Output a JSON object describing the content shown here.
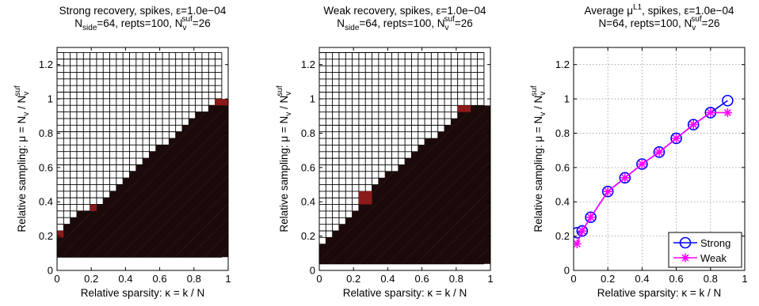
{
  "chart_data": [
    {
      "type": "heatmap",
      "title_lines": [
        [
          "Strong recovery,  spikes,  ",
          {
            "t": "ε"
          },
          "=1.0e−04"
        ],
        [
          "N",
          {
            "sub": "side"
          },
          "=64,  repts=100,  N",
          {
            "sub": "v"
          },
          {
            "sup": "suf"
          },
          "=26"
        ]
      ],
      "xlabel": "Relative sparsity: κ = k / N",
      "ylabel": [
        "Relative sampling: μ = N",
        {
          "sub": "v"
        },
        " / N",
        {
          "sub": "v"
        },
        {
          "sup": "suf"
        }
      ],
      "xlim": [
        0,
        1
      ],
      "ylim": [
        0,
        1.3
      ],
      "x_ticks": [
        0,
        0.2,
        0.4,
        0.6,
        0.8,
        1
      ],
      "x_tick_labels": [
        "0",
        "0.2",
        "0.4",
        "0.6",
        "0.8",
        "1"
      ],
      "y_ticks": [
        0,
        0.2,
        0.4,
        0.6,
        0.8,
        1,
        1.2
      ],
      "y_tick_labels": [
        "0",
        "0.2",
        "0.4",
        "0.6",
        "0.8",
        "1",
        "1.2"
      ],
      "grid_x": {
        "start": 0.0,
        "step": 0.0385,
        "count": 25
      },
      "grid_y": {
        "start": 0.077,
        "step": 0.0385,
        "count": 31
      },
      "boundary": [
        {
          "x0": 0.0,
          "x1": 0.0385,
          "y": 0.231
        },
        {
          "x0": 0.0385,
          "x1": 0.0769,
          "y": 0.269
        },
        {
          "x0": 0.0769,
          "x1": 0.1154,
          "y": 0.308
        },
        {
          "x0": 0.1154,
          "x1": 0.1923,
          "y": 0.346
        },
        {
          "x0": 0.1923,
          "x1": 0.2692,
          "y": 0.385
        },
        {
          "x0": 0.2692,
          "x1": 0.3077,
          "y": 0.423
        },
        {
          "x0": 0.3077,
          "x1": 0.3462,
          "y": 0.462
        },
        {
          "x0": 0.3462,
          "x1": 0.3846,
          "y": 0.5
        },
        {
          "x0": 0.3846,
          "x1": 0.4231,
          "y": 0.538
        },
        {
          "x0": 0.4231,
          "x1": 0.4615,
          "y": 0.577
        },
        {
          "x0": 0.4615,
          "x1": 0.5,
          "y": 0.615
        },
        {
          "x0": 0.5,
          "x1": 0.5385,
          "y": 0.654
        },
        {
          "x0": 0.5385,
          "x1": 0.5769,
          "y": 0.692
        },
        {
          "x0": 0.5769,
          "x1": 0.6538,
          "y": 0.731
        },
        {
          "x0": 0.6538,
          "x1": 0.6923,
          "y": 0.769
        },
        {
          "x0": 0.6923,
          "x1": 0.7308,
          "y": 0.808
        },
        {
          "x0": 0.7308,
          "x1": 0.7692,
          "y": 0.846
        },
        {
          "x0": 0.7692,
          "x1": 0.8077,
          "y": 0.885
        },
        {
          "x0": 0.8077,
          "x1": 0.8846,
          "y": 0.923
        },
        {
          "x0": 0.8846,
          "x1": 0.9231,
          "y": 0.962
        },
        {
          "x0": 0.9231,
          "x1": 1.0,
          "y": 1.0
        }
      ],
      "red_cells": [
        {
          "x0": 0.0,
          "x1": 0.0385,
          "y0": 0.192,
          "y1": 0.231
        },
        {
          "x0": 0.1923,
          "x1": 0.2308,
          "y0": 0.346,
          "y1": 0.385
        },
        {
          "x0": 0.9231,
          "x1": 1.0,
          "y0": 0.962,
          "y1": 1.0
        }
      ],
      "colors": {
        "failure": "#1c0a0a",
        "success": "#ffffff",
        "partial": "#8b1a1a",
        "gridline": "#000000"
      }
    },
    {
      "type": "heatmap",
      "title_lines": [
        [
          "Weak recovery,  spikes,  ",
          {
            "t": "ε"
          },
          "=1.0e−04"
        ],
        [
          "N",
          {
            "sub": "side"
          },
          "=64,  repts=100,  N",
          {
            "sub": "v"
          },
          {
            "sup": "suf"
          },
          "=26"
        ]
      ],
      "xlabel": "Relative sparsity: κ = k / N",
      "ylabel": [
        "Relative sampling: μ = N",
        {
          "sub": "v"
        },
        " / N",
        {
          "sub": "v"
        },
        {
          "sup": "suf"
        }
      ],
      "xlim": [
        0,
        1
      ],
      "ylim": [
        0,
        1.3
      ],
      "x_ticks": [
        0,
        0.2,
        0.4,
        0.6,
        0.8,
        1
      ],
      "x_tick_labels": [
        "0",
        "0.2",
        "0.4",
        "0.6",
        "0.8",
        "1"
      ],
      "y_ticks": [
        0,
        0.2,
        0.4,
        0.6,
        0.8,
        1,
        1.2
      ],
      "y_tick_labels": [
        "0",
        "0.2",
        "0.4",
        "0.6",
        "0.8",
        "1",
        "1.2"
      ],
      "grid_x": {
        "start": 0.0,
        "step": 0.0385,
        "count": 25
      },
      "grid_y": {
        "start": 0.038,
        "step": 0.0385,
        "count": 32
      },
      "boundary": [
        {
          "x0": 0.0,
          "x1": 0.0385,
          "y": 0.154
        },
        {
          "x0": 0.0385,
          "x1": 0.0769,
          "y": 0.192
        },
        {
          "x0": 0.0769,
          "x1": 0.1154,
          "y": 0.231
        },
        {
          "x0": 0.1154,
          "x1": 0.1538,
          "y": 0.269
        },
        {
          "x0": 0.1538,
          "x1": 0.1923,
          "y": 0.308
        },
        {
          "x0": 0.1923,
          "x1": 0.2308,
          "y": 0.346
        },
        {
          "x0": 0.2308,
          "x1": 0.2692,
          "y": 0.423
        },
        {
          "x0": 0.2692,
          "x1": 0.3077,
          "y": 0.462
        },
        {
          "x0": 0.3077,
          "x1": 0.3462,
          "y": 0.5
        },
        {
          "x0": 0.3462,
          "x1": 0.3846,
          "y": 0.538
        },
        {
          "x0": 0.3846,
          "x1": 0.4615,
          "y": 0.577
        },
        {
          "x0": 0.4615,
          "x1": 0.5,
          "y": 0.615
        },
        {
          "x0": 0.5,
          "x1": 0.5385,
          "y": 0.654
        },
        {
          "x0": 0.5385,
          "x1": 0.5769,
          "y": 0.692
        },
        {
          "x0": 0.5769,
          "x1": 0.6154,
          "y": 0.731
        },
        {
          "x0": 0.6154,
          "x1": 0.6923,
          "y": 0.769
        },
        {
          "x0": 0.6923,
          "x1": 0.7308,
          "y": 0.808
        },
        {
          "x0": 0.7308,
          "x1": 0.7692,
          "y": 0.846
        },
        {
          "x0": 0.7692,
          "x1": 0.8077,
          "y": 0.885
        },
        {
          "x0": 0.8077,
          "x1": 0.8846,
          "y": 0.923
        },
        {
          "x0": 0.8846,
          "x1": 1.0,
          "y": 0.962
        }
      ],
      "red_cells": [
        {
          "x0": 0.2308,
          "x1": 0.3077,
          "y0": 0.385,
          "y1": 0.462
        },
        {
          "x0": 0.8077,
          "x1": 0.8846,
          "y0": 0.923,
          "y1": 0.962
        }
      ],
      "colors": {
        "failure": "#1c0a0a",
        "success": "#ffffff",
        "partial": "#8b1a1a",
        "gridline": "#000000"
      }
    },
    {
      "type": "line",
      "title_lines": [
        [
          "Average ",
          {
            "t": "μ"
          },
          {
            "sup": "L1"
          },
          ",  spikes,  ",
          {
            "t": "ε"
          },
          "=1.0e−04"
        ],
        [
          "N=64,  repts=100,  N",
          {
            "sub": "v"
          },
          {
            "sup": "suf"
          },
          "=26"
        ]
      ],
      "xlabel": "Relative sparsity: κ = k / N",
      "ylabel": [
        "Relative sampling: μ = N",
        {
          "sub": "v"
        },
        " / N",
        {
          "sub": "v"
        },
        {
          "sup": "suf"
        }
      ],
      "xlim": [
        0,
        1
      ],
      "ylim": [
        0,
        1.3
      ],
      "x_ticks": [
        0,
        0.2,
        0.4,
        0.6,
        0.8,
        1
      ],
      "x_tick_labels": [
        "0",
        "0.2",
        "0.4",
        "0.6",
        "0.8",
        "1"
      ],
      "y_ticks": [
        0,
        0.2,
        0.4,
        0.6,
        0.8,
        1,
        1.2
      ],
      "y_tick_labels": [
        "0",
        "0.2",
        "0.4",
        "0.6",
        "0.8",
        "1",
        "1.2"
      ],
      "grid": true,
      "legend_position": "bottom-right",
      "x": [
        0.02,
        0.05,
        0.1,
        0.2,
        0.3,
        0.4,
        0.5,
        0.6,
        0.7,
        0.8,
        0.9
      ],
      "series": [
        {
          "name": "Strong",
          "marker": "circle",
          "color": "#0000ff",
          "values": [
            0.22,
            0.23,
            0.31,
            0.46,
            0.54,
            0.62,
            0.69,
            0.77,
            0.85,
            0.92,
            0.99
          ]
        },
        {
          "name": "Weak",
          "marker": "asterisk",
          "color": "#ff00ff",
          "values": [
            0.155,
            0.23,
            0.31,
            0.46,
            0.54,
            0.62,
            0.69,
            0.77,
            0.85,
            0.92,
            0.92
          ]
        }
      ]
    }
  ]
}
